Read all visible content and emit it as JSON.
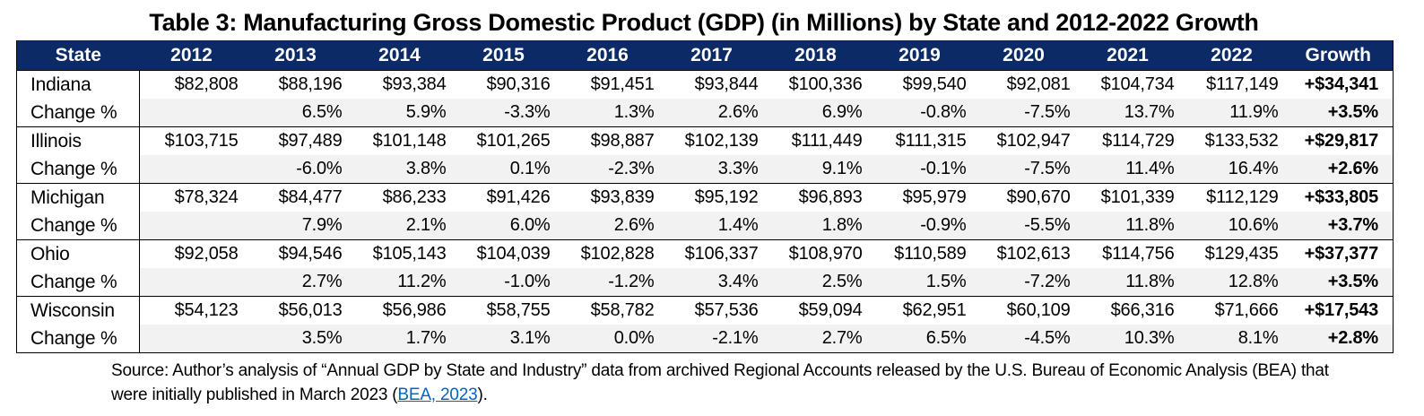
{
  "title": "Table 3: Manufacturing Gross Domestic Product (GDP) (in Millions) by State and 2012-2022 Growth",
  "columns": [
    "State",
    "2012",
    "2013",
    "2014",
    "2015",
    "2016",
    "2017",
    "2018",
    "2019",
    "2020",
    "2021",
    "2022",
    "Growth"
  ],
  "change_label": "Change %",
  "states": [
    {
      "name": "Indiana",
      "values": [
        "$82,808",
        "$88,196",
        "$93,384",
        "$90,316",
        "$91,451",
        "$93,844",
        "$100,336",
        "$99,540",
        "$92,081",
        "$104,734",
        "$117,149"
      ],
      "growth": "+$34,341",
      "changes": [
        "",
        "6.5%",
        "5.9%",
        "-3.3%",
        "1.3%",
        "2.6%",
        "6.9%",
        "-0.8%",
        "-7.5%",
        "13.7%",
        "11.9%"
      ],
      "growth_pct": "+3.5%"
    },
    {
      "name": "Illinois",
      "values": [
        "$103,715",
        "$97,489",
        "$101,148",
        "$101,265",
        "$98,887",
        "$102,139",
        "$111,449",
        "$111,315",
        "$102,947",
        "$114,729",
        "$133,532"
      ],
      "growth": "+$29,817",
      "changes": [
        "",
        "-6.0%",
        "3.8%",
        "0.1%",
        "-2.3%",
        "3.3%",
        "9.1%",
        "-0.1%",
        "-7.5%",
        "11.4%",
        "16.4%"
      ],
      "growth_pct": "+2.6%"
    },
    {
      "name": "Michigan",
      "values": [
        "$78,324",
        "$84,477",
        "$86,233",
        "$91,426",
        "$93,839",
        "$95,192",
        "$96,893",
        "$95,979",
        "$90,670",
        "$101,339",
        "$112,129"
      ],
      "growth": "+$33,805",
      "changes": [
        "",
        "7.9%",
        "2.1%",
        "6.0%",
        "2.6%",
        "1.4%",
        "1.8%",
        "-0.9%",
        "-5.5%",
        "11.8%",
        "10.6%"
      ],
      "growth_pct": "+3.7%"
    },
    {
      "name": "Ohio",
      "values": [
        "$92,058",
        "$94,546",
        "$105,143",
        "$104,039",
        "$102,828",
        "$106,337",
        "$108,970",
        "$110,589",
        "$102,613",
        "$114,756",
        "$129,435"
      ],
      "growth": "+$37,377",
      "changes": [
        "",
        "2.7%",
        "11.2%",
        "-1.0%",
        "-1.2%",
        "3.4%",
        "2.5%",
        "1.5%",
        "-7.2%",
        "11.8%",
        "12.8%"
      ],
      "growth_pct": "+3.5%"
    },
    {
      "name": "Wisconsin",
      "values": [
        "$54,123",
        "$56,013",
        "$56,986",
        "$58,755",
        "$58,782",
        "$57,536",
        "$59,094",
        "$62,951",
        "$60,109",
        "$66,316",
        "$71,666"
      ],
      "growth": "+$17,543",
      "changes": [
        "",
        "3.5%",
        "1.7%",
        "3.1%",
        "0.0%",
        "-2.1%",
        "2.7%",
        "6.5%",
        "-4.5%",
        "10.3%",
        "8.1%"
      ],
      "growth_pct": "+2.8%"
    }
  ],
  "source": {
    "text_before": "Source: Author’s analysis of “Annual GDP by State and Industry” data from archived Regional Accounts released by the U.S. Bureau of Economic Analysis (BEA) that were initially published in March 2023 (",
    "link_text": "BEA, 2023",
    "text_after": ")."
  },
  "colors": {
    "header_bg": "#0c2b66",
    "header_text": "#ffffff",
    "change_row_bg": "#f2f2f2",
    "link": "#0563c1"
  }
}
